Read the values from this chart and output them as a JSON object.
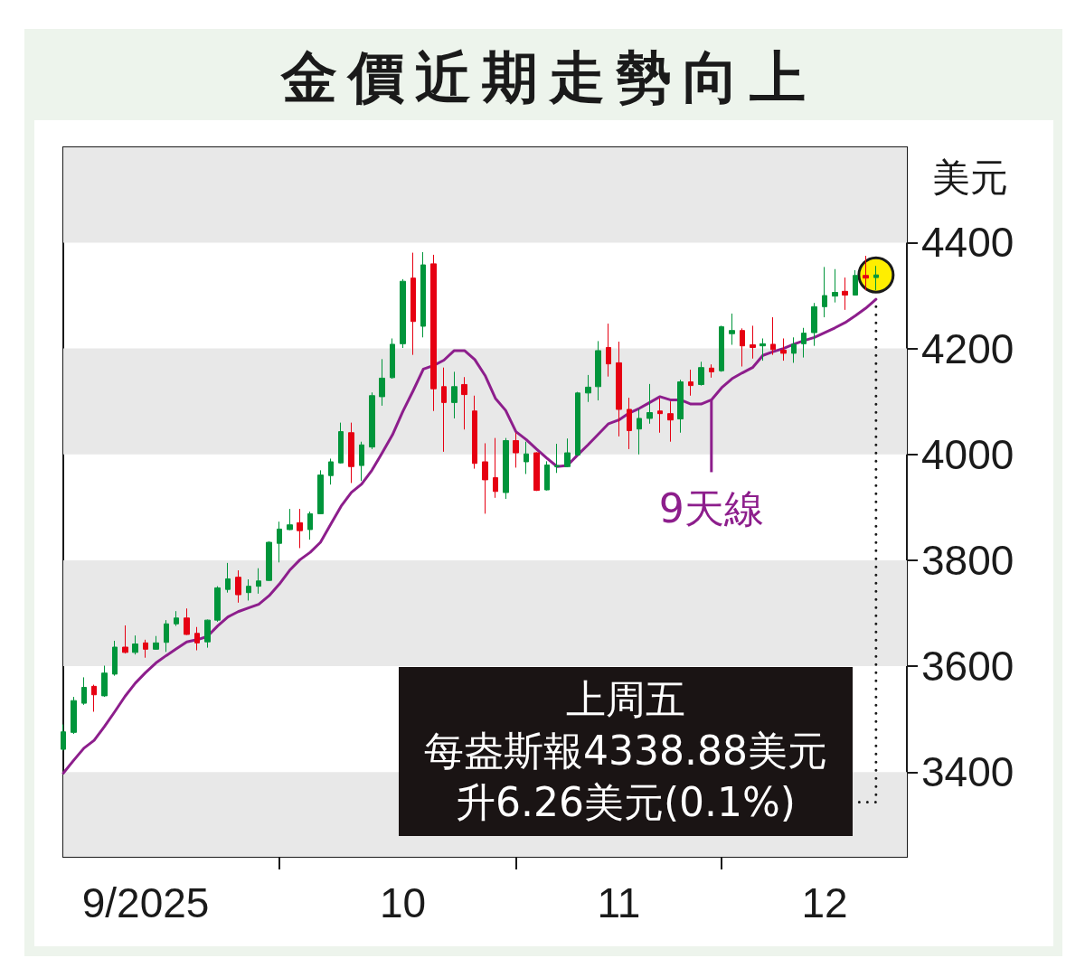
{
  "chart_data": {
    "type": "candlestick",
    "title": "金價近期走勢向上",
    "ylabel": "美元",
    "categories": [
      null,
      null,
      null,
      null,
      null,
      null,
      null,
      null,
      "9/2025",
      null,
      null,
      null,
      null,
      null,
      null,
      null,
      null,
      null,
      null,
      null,
      null,
      null,
      null,
      null,
      null,
      null,
      null,
      null,
      null,
      null,
      null,
      null,
      null,
      "10",
      null,
      null,
      null,
      null,
      null,
      null,
      null,
      null,
      null,
      null,
      null,
      null,
      null,
      null,
      null,
      null,
      null,
      null,
      null,
      null,
      "11",
      null,
      null,
      null,
      null,
      null,
      null,
      null,
      null,
      null,
      null,
      null,
      null,
      null,
      null,
      null,
      null,
      null,
      null,
      null,
      "12",
      null,
      null,
      null,
      null,
      null,
      null,
      null,
      null
    ],
    "series": [
      {
        "ohlc": [
          [
            3443,
            3490,
            3441,
            3476
          ],
          [
            3475,
            3542,
            3472,
            3535
          ],
          [
            3530,
            3579,
            3527,
            3560
          ],
          [
            3562,
            3565,
            3514,
            3546
          ],
          [
            3544,
            3601,
            3542,
            3587
          ],
          [
            3585,
            3648,
            3582,
            3636
          ],
          [
            3636,
            3677,
            3624,
            3626
          ],
          [
            3626,
            3658,
            3622,
            3642
          ],
          [
            3644,
            3650,
            3616,
            3632
          ],
          [
            3632,
            3657,
            3631,
            3644
          ],
          [
            3645,
            3687,
            3627,
            3680
          ],
          [
            3680,
            3704,
            3676,
            3691
          ],
          [
            3691,
            3709,
            3659,
            3660
          ],
          [
            3662,
            3674,
            3630,
            3644
          ],
          [
            3646,
            3688,
            3635,
            3687
          ],
          [
            3687,
            3751,
            3684,
            3748
          ],
          [
            3745,
            3795,
            3739,
            3765
          ],
          [
            3768,
            3781,
            3720,
            3735
          ],
          [
            3739,
            3764,
            3724,
            3751
          ],
          [
            3751,
            3785,
            3737,
            3761
          ],
          [
            3762,
            3836,
            3761,
            3834
          ],
          [
            3832,
            3873,
            3796,
            3859
          ],
          [
            3858,
            3897,
            3857,
            3867
          ],
          [
            3871,
            3897,
            3823,
            3856
          ],
          [
            3858,
            3892,
            3839,
            3888
          ],
          [
            3888,
            3970,
            3887,
            3961
          ],
          [
            3960,
            3992,
            3943,
            3986
          ],
          [
            3984,
            4060,
            3983,
            4043
          ],
          [
            4041,
            4060,
            3946,
            3977
          ],
          [
            3979,
            4024,
            3950,
            4018
          ],
          [
            4014,
            4117,
            4010,
            4111
          ],
          [
            4109,
            4180,
            4092,
            4144
          ],
          [
            4145,
            4219,
            4143,
            4208
          ],
          [
            4209,
            4331,
            4201,
            4327
          ],
          [
            4333,
            4381,
            4188,
            4251
          ],
          [
            4242,
            4382,
            4221,
            4358
          ],
          [
            4360,
            4377,
            4082,
            4124
          ],
          [
            4128,
            4164,
            4005,
            4098
          ],
          [
            4098,
            4156,
            4068,
            4128
          ],
          [
            4132,
            4146,
            4047,
            4113
          ],
          [
            4082,
            4111,
            3973,
            3983
          ],
          [
            3986,
            4021,
            3888,
            3952
          ],
          [
            3956,
            4031,
            3918,
            3930
          ],
          [
            3928,
            4031,
            3916,
            4026
          ],
          [
            4026,
            4041,
            3975,
            4003
          ],
          [
            3986,
            4024,
            3963,
            4001
          ],
          [
            4003,
            4004,
            3931,
            3932
          ],
          [
            3933,
            3987,
            3932,
            3980
          ],
          [
            3977,
            4020,
            3965,
            3979
          ],
          [
            3977,
            4030,
            3976,
            4003
          ],
          [
            3999,
            4118,
            3998,
            4116
          ],
          [
            4116,
            4150,
            4099,
            4127
          ],
          [
            4128,
            4214,
            4102,
            4196
          ],
          [
            4202,
            4247,
            4147,
            4171
          ],
          [
            4173,
            4213,
            4034,
            4085
          ],
          [
            4085,
            4107,
            4010,
            4045
          ],
          [
            4048,
            4086,
            4000,
            4068
          ],
          [
            4068,
            4133,
            4058,
            4079
          ],
          [
            4082,
            4106,
            4041,
            4077
          ],
          [
            4077,
            4100,
            4024,
            4065
          ],
          [
            4067,
            4141,
            4041,
            4137
          ],
          [
            4137,
            4160,
            4111,
            4130
          ],
          [
            4132,
            4175,
            4130,
            4164
          ],
          [
            4163,
            4170,
            4145,
            4156
          ],
          [
            4158,
            4243,
            4156,
            4241
          ],
          [
            4228,
            4266,
            4207,
            4234
          ],
          [
            4234,
            4238,
            4166,
            4205
          ],
          [
            4207,
            4243,
            4181,
            4202
          ],
          [
            4205,
            4219,
            4177,
            4209
          ],
          [
            4208,
            4259,
            4188,
            4198
          ],
          [
            4197,
            4219,
            4177,
            4191
          ],
          [
            4191,
            4221,
            4173,
            4208
          ],
          [
            4209,
            4239,
            4183,
            4229
          ],
          [
            4230,
            4286,
            4205,
            4279
          ],
          [
            4279,
            4354,
            4259,
            4300
          ],
          [
            4299,
            4350,
            4287,
            4306
          ],
          [
            4308,
            4334,
            4273,
            4301
          ],
          [
            4301,
            4348,
            4300,
            4338
          ],
          [
            4338,
            4375,
            4310,
            4333
          ],
          [
            4334,
            4356,
            4310,
            4339
          ],
          null,
          null,
          null
        ],
        "colors": [
          "#00953b",
          "#00953b",
          "#00953b",
          "#e60012",
          "#00953b",
          "#00953b",
          "#e60012",
          "#00953b",
          "#e60012",
          "#00953b",
          "#00953b",
          "#00953b",
          "#e60012",
          "#e60012",
          "#00953b",
          "#00953b",
          "#00953b",
          "#e60012",
          "#00953b",
          "#00953b",
          "#00953b",
          "#00953b",
          "#00953b",
          "#e60012",
          "#00953b",
          "#00953b",
          "#00953b",
          "#00953b",
          "#e60012",
          "#00953b",
          "#00953b",
          "#00953b",
          "#00953b",
          "#00953b",
          "#e60012",
          "#00953b",
          "#e60012",
          "#e60012",
          "#00953b",
          "#e60012",
          "#e60012",
          "#e60012",
          "#e60012",
          "#00953b",
          "#e60012",
          "#00953b",
          "#e60012",
          "#00953b",
          "#00953b",
          "#00953b",
          "#00953b",
          "#00953b",
          "#00953b",
          "#e60012",
          "#e60012",
          "#e60012",
          "#00953b",
          "#00953b",
          "#e60012",
          "#e60012",
          "#00953b",
          "#e60012",
          "#00953b",
          "#e60012",
          "#00953b",
          "#00953b",
          "#e60012",
          "#e60012",
          "#00953b",
          "#e60012",
          "#e60012",
          "#00953b",
          "#00953b",
          "#00953b",
          "#00953b",
          "#00953b",
          "#e60012",
          "#00953b",
          "#e60012",
          "#00953b",
          null,
          null,
          null
        ]
      },
      {
        "type": "line",
        "name": "9天線",
        "color": "#8d1e8c",
        "values": [
          3398,
          3422,
          3445,
          3460,
          3486,
          3514,
          3543,
          3568,
          3588,
          3606,
          3620,
          3633,
          3646,
          3650,
          3656,
          3676,
          3693,
          3703,
          3710,
          3717,
          3733,
          3755,
          3781,
          3801,
          3815,
          3834,
          3868,
          3902,
          3928,
          3944,
          3970,
          4003,
          4037,
          4081,
          4120,
          4161,
          4168,
          4178,
          4196,
          4196,
          4179,
          4149,
          4106,
          4083,
          4043,
          4028,
          4010,
          3993,
          3977,
          3979,
          3999,
          4018,
          4038,
          4058,
          4065,
          4078,
          4087,
          4098,
          4109,
          4103,
          4103,
          4095,
          4095,
          4103,
          4126,
          4143,
          4154,
          4164,
          4187,
          4194,
          4200,
          4208,
          4215,
          4221,
          4230,
          4239,
          4249,
          4262,
          4276,
          4293,
          null,
          null,
          null
        ]
      }
    ],
    "ylim": [
      3240,
      4580
    ],
    "yticks": [
      3400,
      3600,
      3800,
      4000,
      4200,
      4400
    ],
    "bands": [
      {
        "axis": "y",
        "from": 4400,
        "to": 4580,
        "color": "#e8e8e8"
      },
      {
        "axis": "y",
        "from": 4000,
        "to": 4200,
        "color": "#e8e8e8"
      },
      {
        "axis": "y",
        "from": 3600,
        "to": 3800,
        "color": "#e8e8e8"
      },
      {
        "axis": "y",
        "from": 3240,
        "to": 3400,
        "color": "#e8e8e8"
      }
    ],
    "annotations": [
      "上周五",
      "每盎斯報4338.88美元",
      "升6.26美元(0.1%)"
    ],
    "marker": "none"
  }
}
